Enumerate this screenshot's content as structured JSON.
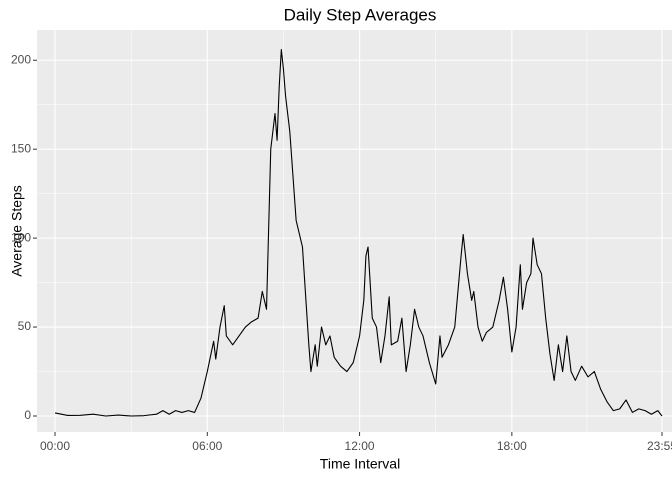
{
  "chart_data": {
    "type": "line",
    "title": "Daily Step Averages",
    "x_label": "Time Interval",
    "y_label": "Average Steps",
    "x": [
      0,
      0.5,
      1,
      1.5,
      2,
      2.5,
      3,
      3.5,
      4,
      4.25,
      4.5,
      4.75,
      5,
      5.25,
      5.5,
      5.75,
      6,
      6.25,
      6.333,
      6.5,
      6.667,
      6.75,
      7,
      7.25,
      7.5,
      7.75,
      8,
      8.167,
      8.333,
      8.5,
      8.667,
      8.75,
      8.833,
      8.917,
      9,
      9.083,
      9.25,
      9.5,
      9.75,
      10,
      10.083,
      10.25,
      10.333,
      10.5,
      10.667,
      10.833,
      11,
      11.25,
      11.5,
      11.75,
      12,
      12.167,
      12.25,
      12.333,
      12.5,
      12.667,
      12.833,
      13,
      13.167,
      13.25,
      13.5,
      13.667,
      13.833,
      14,
      14.167,
      14.333,
      14.5,
      14.75,
      15,
      15.167,
      15.25,
      15.5,
      15.75,
      16,
      16.083,
      16.25,
      16.417,
      16.5,
      16.667,
      16.833,
      17,
      17.25,
      17.5,
      17.667,
      17.833,
      18,
      18.167,
      18.333,
      18.417,
      18.583,
      18.75,
      18.833,
      19,
      19.167,
      19.333,
      19.5,
      19.667,
      19.833,
      20,
      20.167,
      20.333,
      20.5,
      20.75,
      21,
      21.25,
      21.5,
      21.75,
      22,
      22.25,
      22.5,
      22.75,
      23,
      23.25,
      23.5,
      23.75,
      23.917
    ],
    "series": [
      {
        "name": "steps",
        "color": "#000000",
        "values": [
          1.7,
          0.3,
          0.4,
          1,
          0,
          0.5,
          0,
          0.2,
          1,
          3,
          1,
          3,
          2,
          3,
          2,
          10,
          25,
          42,
          32,
          50,
          62,
          45,
          40,
          45,
          50,
          53,
          55,
          70,
          60,
          150,
          170,
          155,
          185,
          206,
          195,
          180,
          160,
          110,
          95,
          40,
          25,
          40,
          28,
          50,
          40,
          45,
          33,
          28,
          25,
          30,
          45,
          65,
          90,
          95,
          55,
          50,
          30,
          45,
          67,
          40,
          42,
          55,
          25,
          40,
          60,
          50,
          45,
          30,
          18,
          45,
          33,
          40,
          50,
          90,
          102,
          80,
          65,
          70,
          50,
          42,
          47,
          50,
          65,
          78,
          60,
          36,
          50,
          85,
          60,
          75,
          80,
          100,
          85,
          80,
          55,
          35,
          20,
          40,
          25,
          45,
          25,
          20,
          28,
          22,
          25,
          15,
          8,
          3,
          4,
          9,
          2,
          4,
          3,
          1,
          3,
          0
        ]
      }
    ],
    "xlim": [
      -0.71,
      24.31
    ],
    "ylim": [
      -9,
      217
    ],
    "xticks": [
      {
        "value": 0,
        "label": "00:00"
      },
      {
        "value": 6,
        "label": "06:00"
      },
      {
        "value": 12,
        "label": "12:00"
      },
      {
        "value": 18,
        "label": "18:00"
      },
      {
        "value": 23.917,
        "label": "23:55"
      }
    ],
    "yticks": [
      0,
      50,
      100,
      150,
      200
    ],
    "grid": true
  }
}
